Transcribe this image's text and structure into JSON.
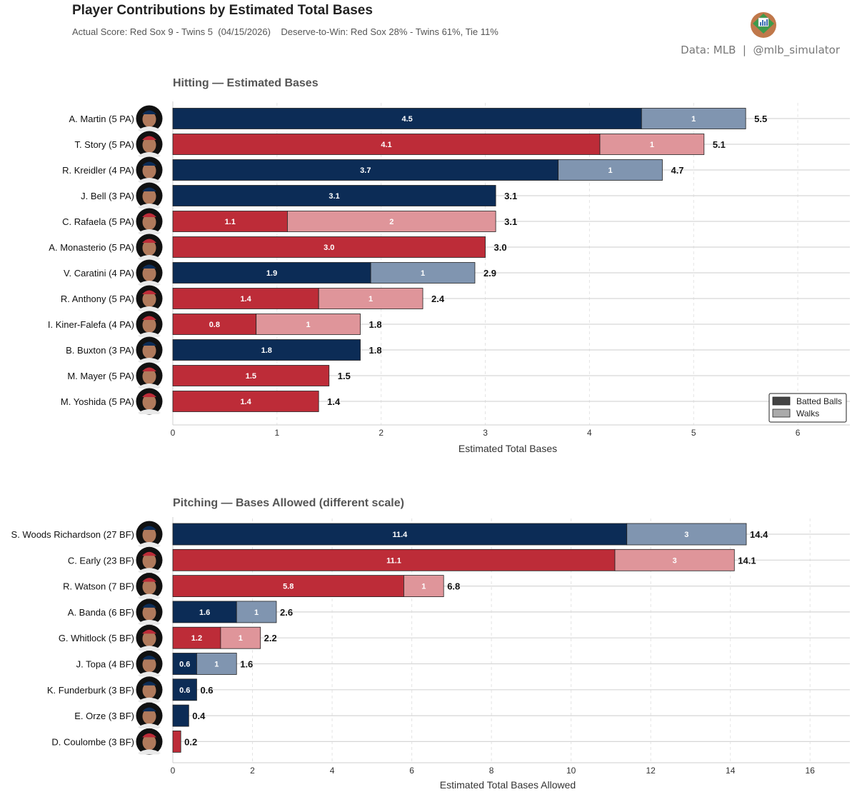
{
  "header": {
    "title": "Player Contributions by Estimated Total Bases",
    "subtitle": "Actual Score: Red Sox 9 - Twins 5  (04/15/2026)    Deserve-to-Win: Red Sox 28% - Twins 61%, Tie 11%",
    "credit": "Data: MLB  |  @mlb_simulator"
  },
  "colors": {
    "twins_dark": "#0c2c56",
    "twins_light": "#8095b0",
    "redsox_dark": "#bd2c38",
    "redsox_light": "#df959a"
  },
  "chart_data": [
    {
      "type": "bar",
      "orientation": "horizontal",
      "stacked": true,
      "title": "Hitting — Estimated Bases",
      "xlabel": "Estimated Total Bases",
      "xlim": [
        0,
        6.5
      ],
      "xticks": [
        0,
        1,
        2,
        3,
        4,
        5,
        6
      ],
      "grid": true,
      "legend": {
        "position": "bottom-right",
        "entries": [
          "Batted Balls",
          "Walks"
        ]
      },
      "categories": [
        "A. Martin  (5 PA)",
        "T. Story  (5 PA)",
        "R. Kreidler  (4 PA)",
        "J. Bell  (3 PA)",
        "C. Rafaela  (5 PA)",
        "A. Monasterio  (5 PA)",
        "V. Caratini  (4 PA)",
        "R. Anthony  (5 PA)",
        "I. Kiner-Falefa  (4 PA)",
        "B. Buxton  (3 PA)",
        "M. Mayer  (5 PA)",
        "M. Yoshida  (5 PA)"
      ],
      "team": [
        "MIN",
        "BOS",
        "MIN",
        "MIN",
        "BOS",
        "BOS",
        "MIN",
        "BOS",
        "BOS",
        "MIN",
        "BOS",
        "BOS"
      ],
      "series": [
        {
          "name": "Batted Balls",
          "values": [
            4.5,
            4.1,
            3.7,
            3.1,
            1.1,
            3.0,
            1.9,
            1.4,
            0.8,
            1.8,
            1.5,
            1.4
          ],
          "labels": [
            "4.5",
            "4.1",
            "3.7",
            "3.1",
            "1.1",
            "3.0",
            "1.9",
            "1.4",
            "0.8",
            "1.8",
            "1.5",
            "1.4"
          ]
        },
        {
          "name": "Walks",
          "values": [
            1,
            1,
            1,
            0,
            2,
            0,
            1,
            1,
            1,
            0,
            0,
            0
          ],
          "labels": [
            "1",
            "1",
            "1",
            "",
            "2",
            "",
            "1",
            "1",
            "1",
            "",
            "",
            ""
          ]
        }
      ],
      "totals": [
        5.5,
        5.1,
        4.7,
        3.1,
        3.1,
        3.0,
        2.9,
        2.4,
        1.8,
        1.8,
        1.5,
        1.4
      ],
      "total_labels": [
        "5.5",
        "5.1",
        "4.7",
        "3.1",
        "3.1",
        "3.0",
        "2.9",
        "2.4",
        "1.8",
        "1.8",
        "1.5",
        "1.4"
      ]
    },
    {
      "type": "bar",
      "orientation": "horizontal",
      "stacked": true,
      "title": "Pitching — Bases Allowed  (different scale)",
      "xlabel": "Estimated Total Bases Allowed",
      "xlim": [
        0,
        17
      ],
      "xticks": [
        0,
        2,
        4,
        6,
        8,
        10,
        12,
        14,
        16
      ],
      "grid": true,
      "categories": [
        "S. Woods Richardson  (27 BF)",
        "C. Early  (23 BF)",
        "R. Watson  (7 BF)",
        "A. Banda  (6 BF)",
        "G. Whitlock  (5 BF)",
        "J. Topa  (4 BF)",
        "K. Funderburk  (3 BF)",
        "E. Orze  (3 BF)",
        "D. Coulombe  (3 BF)"
      ],
      "team": [
        "MIN",
        "BOS",
        "BOS",
        "MIN",
        "BOS",
        "MIN",
        "MIN",
        "MIN",
        "BOS"
      ],
      "series": [
        {
          "name": "Batted Balls",
          "values": [
            11.4,
            11.1,
            5.8,
            1.6,
            1.2,
            0.6,
            0.6,
            0.4,
            0.2
          ],
          "labels": [
            "11.4",
            "11.1",
            "5.8",
            "1.6",
            "1.2",
            "0.6",
            "0.6",
            "",
            ""
          ]
        },
        {
          "name": "Walks",
          "values": [
            3,
            3,
            1,
            1,
            1,
            1,
            0,
            0,
            0
          ],
          "labels": [
            "3",
            "3",
            "1",
            "1",
            "1",
            "1",
            "",
            "",
            ""
          ]
        }
      ],
      "totals": [
        14.4,
        14.1,
        6.8,
        2.6,
        2.2,
        1.6,
        0.6,
        0.4,
        0.2
      ],
      "total_labels": [
        "14.4",
        "14.1",
        "6.8",
        "2.6",
        "2.2",
        "1.6",
        "0.6",
        "0.4",
        "0.2"
      ]
    }
  ]
}
